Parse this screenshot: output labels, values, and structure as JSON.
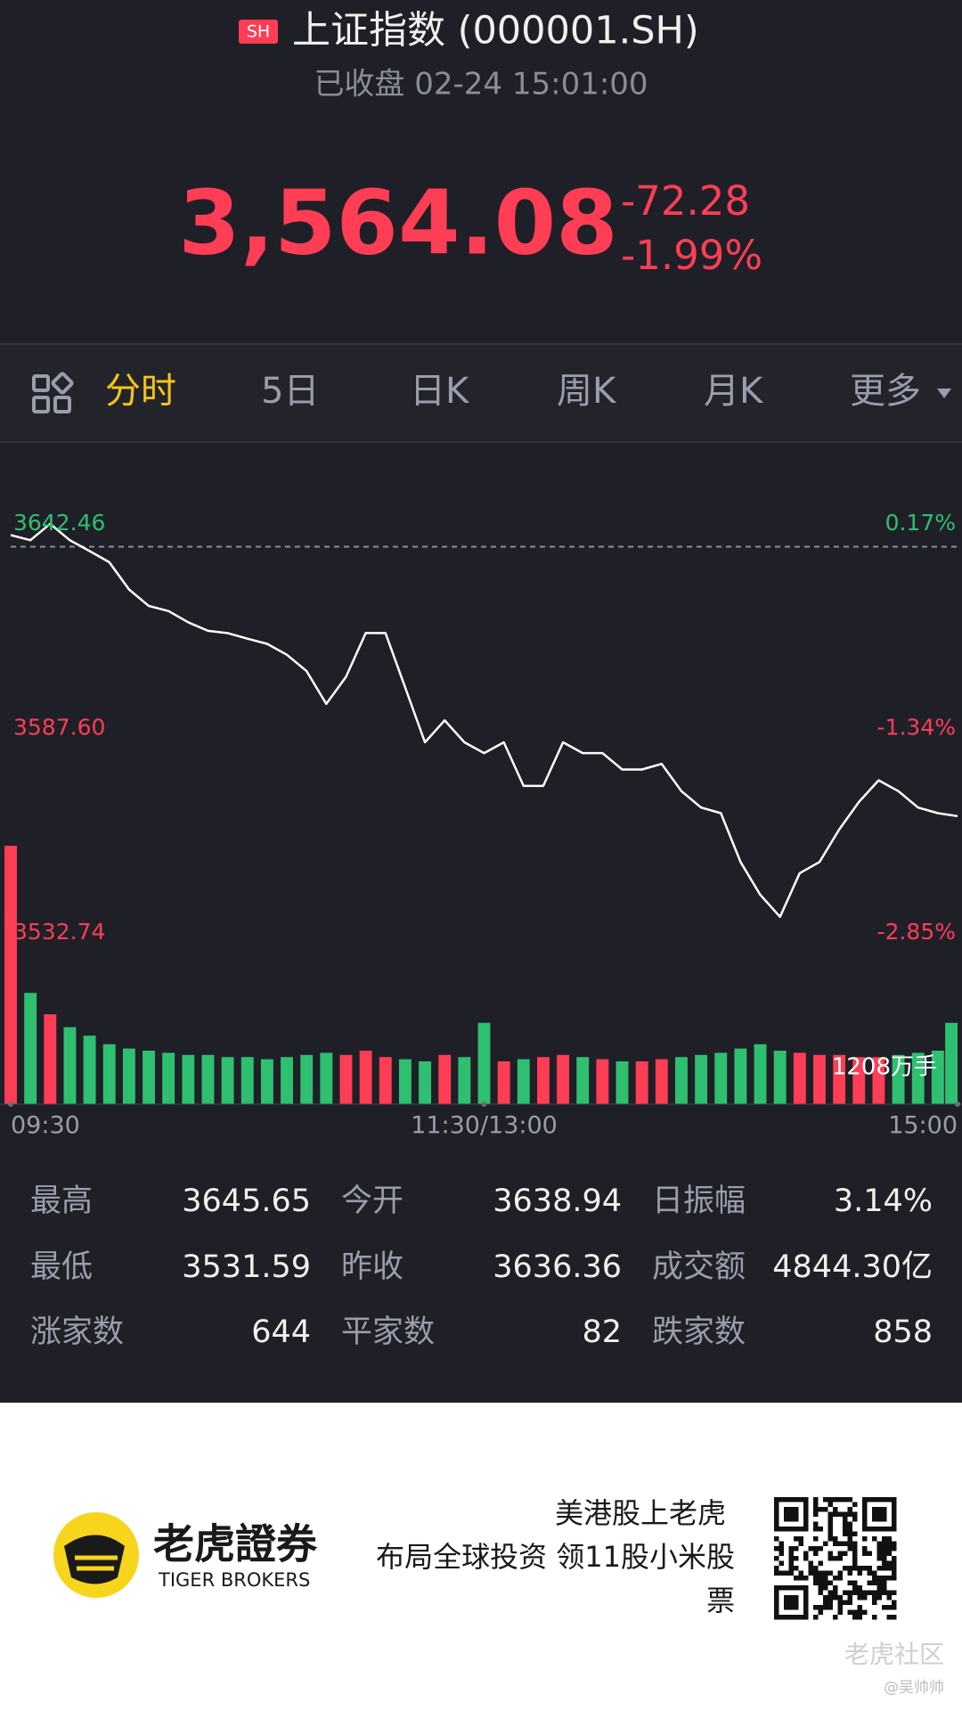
{
  "header": {
    "badge": "SH",
    "title": "上证指数 (000001.SH)",
    "status": "已收盘 02-24 15:01:00"
  },
  "quote": {
    "price": "3,564.08",
    "change": "-72.28",
    "change_pct": "-1.99%"
  },
  "tabs": [
    "分时",
    "5日",
    "日K",
    "周K",
    "月K",
    "更多"
  ],
  "chart": {
    "type": "line",
    "x": [
      0,
      5,
      10,
      15,
      20,
      25,
      30,
      35,
      40,
      45,
      50,
      55,
      60,
      65,
      70,
      75,
      80,
      85,
      90,
      95,
      100,
      105,
      110,
      115,
      120,
      125,
      130,
      135,
      140,
      145,
      150,
      155,
      160,
      165,
      170,
      175,
      180,
      185,
      190,
      195,
      200,
      205,
      210,
      215,
      220,
      225,
      230,
      235,
      240
    ],
    "xlim": [
      0,
      240
    ],
    "xticks": [
      {
        "value": 0,
        "label": "09:30"
      },
      {
        "value": 120,
        "label": "11:30/13:00"
      },
      {
        "value": 240,
        "label": "15:00"
      }
    ],
    "ylim": [
      3532.74,
      3642.46
    ],
    "yticks": [
      3642.46,
      {
        "value": 3587.6,
        "label": "3587.60"
      },
      3532.74
    ],
    "right_labels": [
      "0.17%",
      "-1.34%",
      "-2.85%"
    ],
    "reference": 3636.36,
    "price": [
      3639.5,
      3638.1,
      3642.5,
      3638.1,
      3635.2,
      3632.2,
      3624.9,
      3620.5,
      3619.1,
      3616.1,
      3613.8,
      3613.2,
      3611.7,
      3610.3,
      3607.4,
      3603.0,
      3594.2,
      3601.5,
      3613.2,
      3613.2,
      3598.6,
      3583.9,
      3589.8,
      3583.9,
      3581.0,
      3583.9,
      3572.2,
      3572.2,
      3583.9,
      3581.0,
      3581.0,
      3576.6,
      3576.6,
      3578.1,
      3570.8,
      3566.4,
      3564.9,
      3551.8,
      3543.0,
      3537.1,
      3548.8,
      3551.8,
      3560.5,
      3567.9,
      3573.7,
      3570.8,
      3566.4,
      3564.9,
      3564.1
    ],
    "volume": [
      1208,
      520,
      420,
      360,
      320,
      280,
      260,
      250,
      240,
      230,
      230,
      220,
      220,
      210,
      220,
      230,
      240,
      230,
      250,
      220,
      210,
      200,
      230,
      220,
      380,
      200,
      210,
      220,
      230,
      220,
      210,
      200,
      200,
      210,
      220,
      230,
      240,
      260,
      280,
      250,
      240,
      230,
      230,
      220,
      220,
      230,
      240,
      250,
      380
    ],
    "volume_ylim": [
      0,
      1250
    ],
    "volume_label": "1208万手",
    "up_color": "#ff3d55",
    "down_color": "#2fbf71",
    "line_color": "#ffffff"
  },
  "stats": {
    "rows": [
      [
        "最高",
        "3645.65",
        "今开",
        "3638.94",
        "日振幅",
        "3.14%"
      ],
      [
        "最低",
        "3531.59",
        "昨收",
        "3636.36",
        "成交额",
        "4844.30亿"
      ],
      [
        "涨家数",
        "644",
        "平家数",
        "82",
        "跌家数",
        "858"
      ]
    ]
  },
  "footer": {
    "brand": "老虎證券",
    "brand_en": "TIGER BROKERS",
    "slogan": [
      "美港股上老虎",
      "布局全球投资 领11股小米股",
      "票"
    ],
    "watermark": "老虎社区",
    "author": "@吴帅帅"
  }
}
